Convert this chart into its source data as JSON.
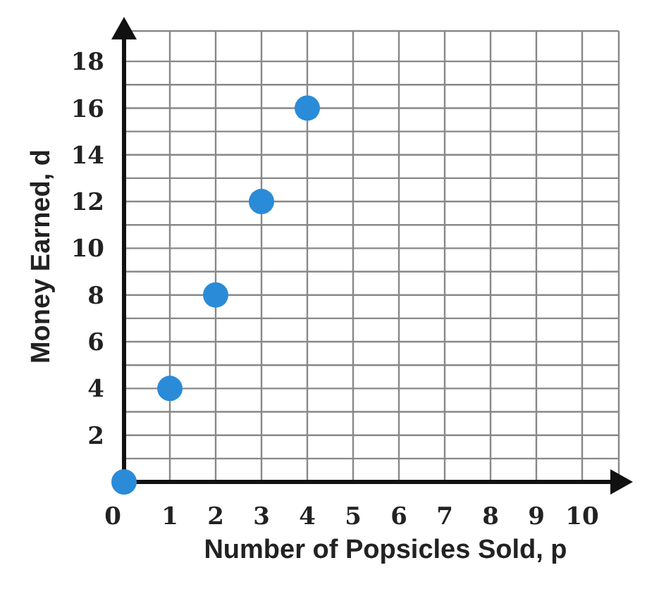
{
  "chart_data": {
    "type": "scatter",
    "xlabel": "Number of Popsicles Sold, p",
    "ylabel": "Money Earned, d",
    "x": [
      0,
      1,
      2,
      3,
      4
    ],
    "values": [
      0,
      4,
      8,
      12,
      16
    ],
    "color": "#2a8bd8",
    "marker": "circle",
    "grid": true,
    "xlim": [
      0,
      10.8
    ],
    "ylim": [
      0,
      19.3
    ],
    "xticks": [
      0,
      1,
      2,
      3,
      4,
      5,
      6,
      7,
      8,
      9,
      10
    ],
    "yticks": [
      {
        "value": 0,
        "label": null
      },
      {
        "value": 1,
        "label": null
      },
      2,
      {
        "value": 3,
        "label": null
      },
      4,
      {
        "value": 5,
        "label": null
      },
      6,
      {
        "value": 7,
        "label": null
      },
      8,
      {
        "value": 9,
        "label": null
      },
      10,
      {
        "value": 11,
        "label": null
      },
      12,
      {
        "value": 13,
        "label": null
      },
      14,
      {
        "value": 15,
        "label": null
      },
      16,
      {
        "value": 17,
        "label": null
      },
      18
    ]
  }
}
